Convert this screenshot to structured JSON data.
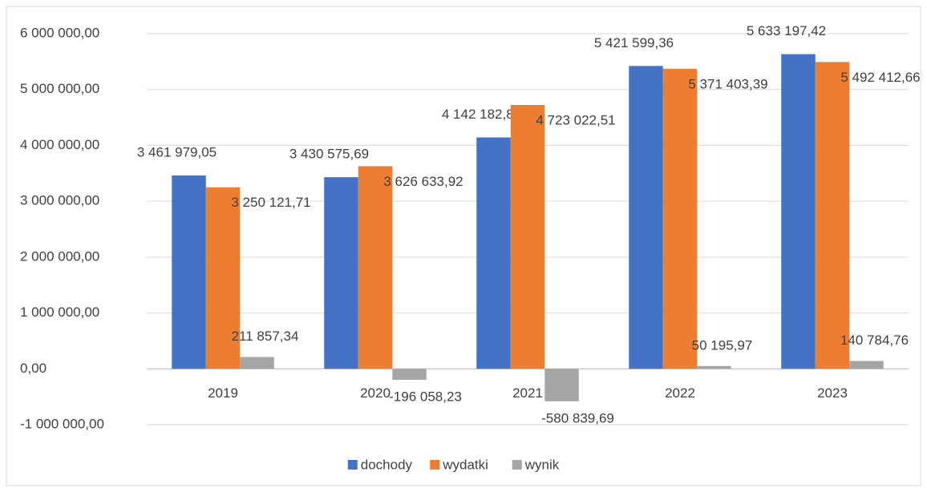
{
  "chart_data": {
    "type": "bar",
    "categories": [
      "2019",
      "2020",
      "2021",
      "2022",
      "2023"
    ],
    "series": [
      {
        "name": "dochody",
        "color": "#4472c4",
        "values": [
          3461979.05,
          3430575.69,
          4142182.82,
          5421599.36,
          5633197.42
        ],
        "value_labels": [
          "3 461 979,05",
          "3 430 575,69",
          "4 142 182,82",
          "5 421 599,36",
          "5 633 197,42"
        ]
      },
      {
        "name": "wydatki",
        "color": "#ed7d31",
        "values": [
          3250121.71,
          3626633.92,
          4723022.51,
          5371403.39,
          5492412.66
        ],
        "value_labels": [
          "3 250 121,71",
          "3 626 633,92",
          "4 723 022,51",
          "5 371 403,39",
          "5 492 412,66"
        ]
      },
      {
        "name": "wynik",
        "color": "#a5a5a5",
        "values": [
          211857.34,
          -196058.23,
          -580839.69,
          50195.97,
          140784.76
        ],
        "value_labels": [
          "211 857,34",
          "-196 058,23",
          "-580 839,69",
          "50 195,97",
          "140 784,76"
        ]
      }
    ],
    "ylim": [
      -1000000,
      6000000
    ],
    "yticks": [
      {
        "value": -1000000,
        "label": "-1 000 000,00"
      },
      {
        "value": 0,
        "label": "0,00"
      },
      {
        "value": 1000000,
        "label": "1 000 000,00"
      },
      {
        "value": 2000000,
        "label": "2 000 000,00"
      },
      {
        "value": 3000000,
        "label": "3 000 000,00"
      },
      {
        "value": 4000000,
        "label": "4 000 000,00"
      },
      {
        "value": 5000000,
        "label": "5 000 000,00"
      },
      {
        "value": 6000000,
        "label": "6 000 000,00"
      }
    ],
    "grid": true,
    "legend": "bottom"
  }
}
